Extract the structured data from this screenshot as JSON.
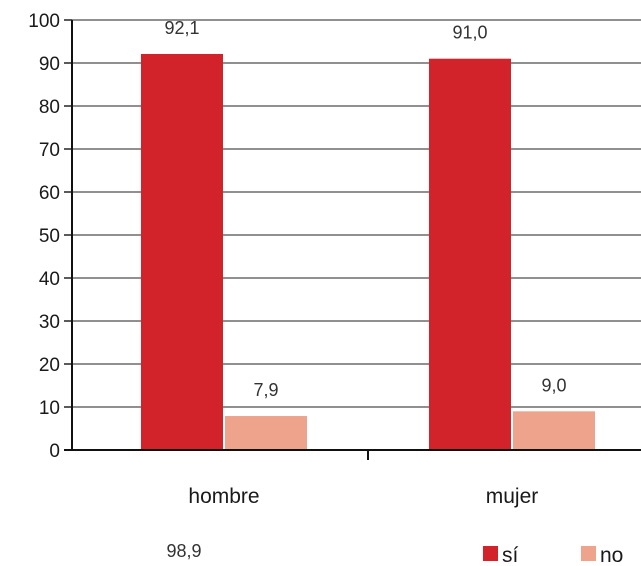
{
  "chart_data": {
    "type": "bar",
    "categories": [
      "hombre",
      "mujer"
    ],
    "series": [
      {
        "name": "sí",
        "values": [
          92.1,
          91.0
        ],
        "labels": [
          "92,1",
          "91,0"
        ],
        "color": "#d2232a"
      },
      {
        "name": "no",
        "values": [
          7.9,
          9.0
        ],
        "labels": [
          "7,9",
          "9,0"
        ],
        "color": "#eea48c"
      }
    ],
    "yticks": [
      "0",
      "10",
      "20",
      "30",
      "40",
      "50",
      "60",
      "70",
      "80",
      "90",
      "100"
    ],
    "ylim": [
      0,
      100
    ],
    "grid": true,
    "legend": "bottom-right",
    "footnote": "98,9"
  }
}
